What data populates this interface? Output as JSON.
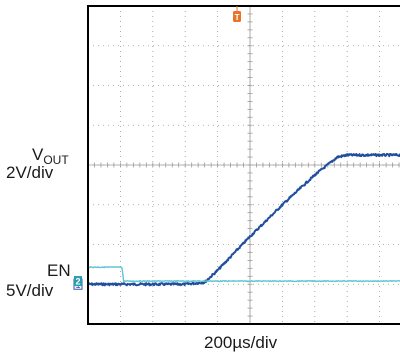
{
  "labels": {
    "vout_main": "V",
    "vout_sub": "OUT",
    "vout_scale": "2V/div",
    "en_name": "EN",
    "en_scale": "5V/div",
    "time_scale": "200µs/div"
  },
  "markers": {
    "ch1": "1",
    "ch2": "2",
    "trigger": "T"
  },
  "colors": {
    "background": "#ffffff",
    "frame": "#000000",
    "grid": "#9a9a9a",
    "vout_trace": "#1f4e9e",
    "en_trace": "#5fc4d4",
    "trigger_marker": "#e8732a",
    "ch1_marker": "#2e5aa8",
    "ch2_marker": "#2a9bb0"
  },
  "chart_data": {
    "type": "line",
    "x_unit": "div",
    "xlim": [
      0,
      10
    ],
    "ylim": [
      0,
      8
    ],
    "grid": true,
    "time_per_div": "200µs/div",
    "series": [
      {
        "name": "VOUT",
        "scale": "2V/div",
        "reference_level": 1,
        "x": [
          0,
          1,
          2,
          3,
          3.6,
          4,
          5,
          6,
          7,
          7.7,
          8,
          9,
          10
        ],
        "y": [
          1,
          1,
          1,
          1,
          1.05,
          1.35,
          2.2,
          3.0,
          3.75,
          4.2,
          4.25,
          4.25,
          4.25
        ]
      },
      {
        "name": "EN",
        "scale": "5V/div",
        "reference_level": 0,
        "x": [
          0,
          0.5,
          1.05,
          1.1,
          2,
          4,
          6,
          8,
          10
        ],
        "y": [
          0.35,
          0.35,
          0.35,
          0,
          0,
          0,
          0,
          0,
          0
        ]
      }
    ]
  }
}
